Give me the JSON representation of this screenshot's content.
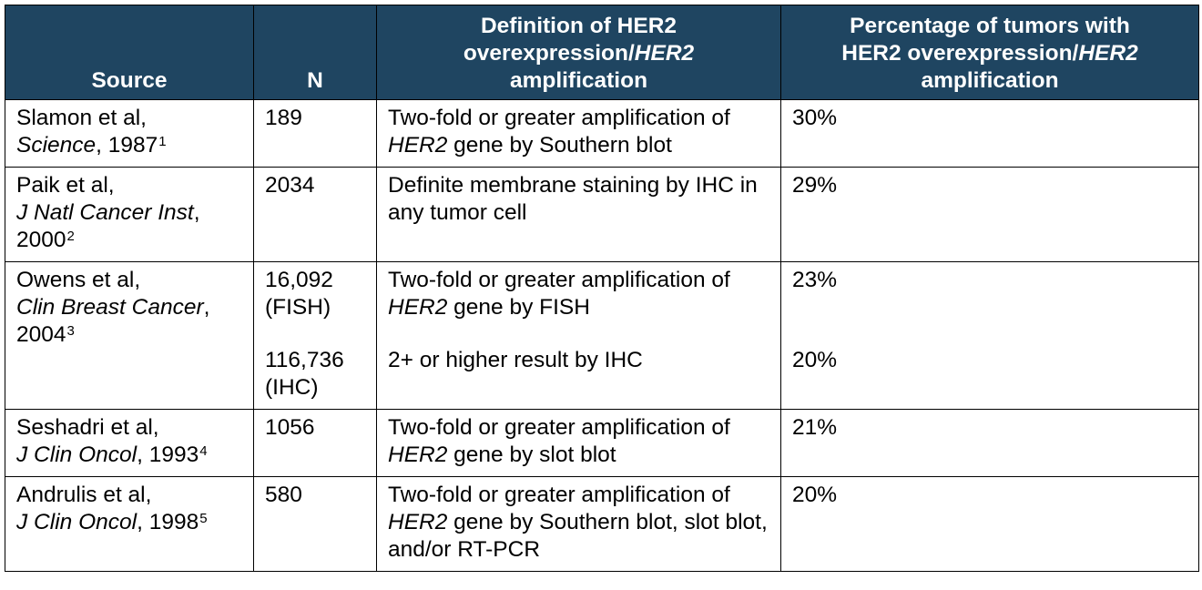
{
  "table": {
    "headers": {
      "source": "Source",
      "n": "N",
      "definition_a": "Definition of HER2",
      "definition_b": "overexpression/",
      "definition_c": "HER2",
      "definition_d": "amplification",
      "percentage_a": "Percentage of tumors with",
      "percentage_b": "HER2 overexpression/",
      "percentage_c": "HER2",
      "percentage_d": "amplification"
    },
    "rows": [
      {
        "author": "Slamon et al,",
        "journal": "Science",
        "year": ", 1987",
        "ref": "1",
        "n": "189",
        "def_pre": "Two-fold or greater amplification of ",
        "def_gene": "HER2",
        "def_post": " gene by Southern blot",
        "pct": "30%"
      },
      {
        "author": "Paik et al,",
        "journal": "J Natl Cancer Inst",
        "year": ",",
        "year2": "2000",
        "ref": "2",
        "n": "2034",
        "def": "Definite membrane staining by IHC in any tumor cell",
        "pct": "29%"
      },
      {
        "author": "Owens et al,",
        "journal": "Clin Breast Cancer",
        "year": ",",
        "year2": "2004",
        "ref": "3",
        "n1": "16,092",
        "n1_method": "(FISH)",
        "n2": "116,736",
        "n2_method": "(IHC)",
        "def1_pre": "Two-fold or greater amplification of ",
        "def1_gene": "HER2",
        "def1_post": " gene by FISH",
        "def2": "2+ or higher result by IHC",
        "pct1": "23%",
        "pct2": "20%"
      },
      {
        "author": "Seshadri et al,",
        "journal": "J Clin Oncol",
        "year": ", 1993",
        "ref": "4",
        "n": "1056",
        "def_pre": "Two-fold or greater amplification of ",
        "def_gene": "HER2",
        "def_post": " gene by slot blot",
        "pct": "21%"
      },
      {
        "author": "Andrulis et al,",
        "journal": "J Clin Oncol",
        "year": ", 1998",
        "ref": "5",
        "n": "580",
        "def_pre": "Two-fold or greater amplification of ",
        "def_gene": "HER2",
        "def_post": " gene by Southern blot, slot blot, and/or RT-PCR",
        "pct": "20%"
      }
    ]
  }
}
